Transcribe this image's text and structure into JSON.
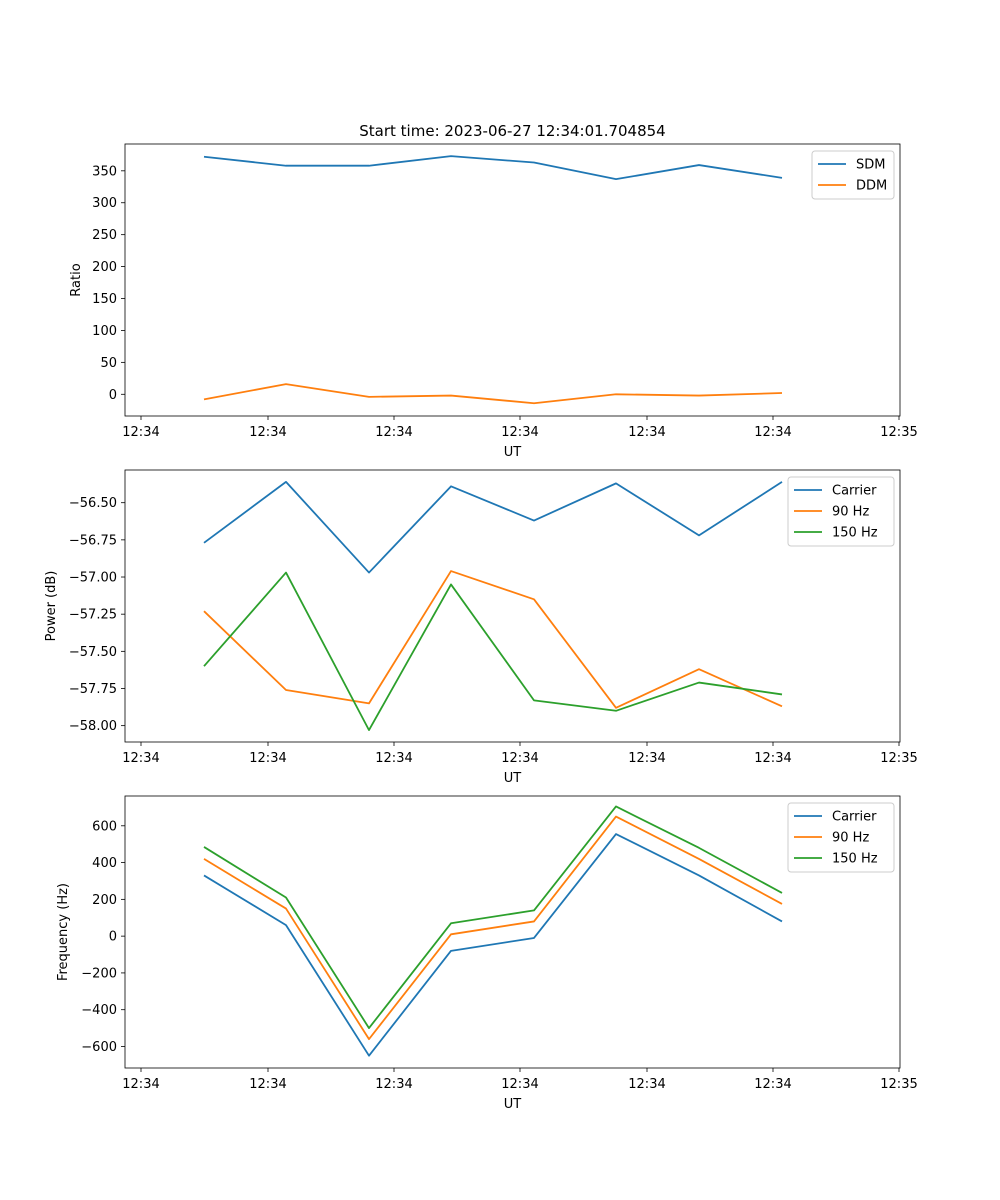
{
  "figure_title": "Start time: 2023-06-27 12:34:01.704854",
  "colors": {
    "blue": "#1f77b4",
    "orange": "#ff7f0e",
    "green": "#2ca02c"
  },
  "chart_data": [
    {
      "type": "line",
      "title": "Start time: 2023-06-27 12:34:01.704854",
      "xlabel": "UT",
      "ylabel": "Ratio",
      "x_ticks": [
        "12:34",
        "12:34",
        "12:34",
        "12:34",
        "12:34",
        "12:34",
        "12:35"
      ],
      "y_ticks": [
        0,
        50,
        100,
        150,
        200,
        250,
        300,
        350
      ],
      "ylim": [
        -34,
        392
      ],
      "legend": "top-right",
      "series": [
        {
          "name": "SDM",
          "color": "#1f77b4",
          "values": [
            372,
            358,
            358,
            373,
            363,
            337,
            359,
            339
          ]
        },
        {
          "name": "DDM",
          "color": "#ff7f0e",
          "values": [
            -8,
            16,
            -4,
            -2,
            -14,
            0,
            -2,
            2
          ]
        }
      ]
    },
    {
      "type": "line",
      "xlabel": "UT",
      "ylabel": "Power (dB)",
      "x_ticks": [
        "12:34",
        "12:34",
        "12:34",
        "12:34",
        "12:34",
        "12:34",
        "12:35"
      ],
      "y_ticks": [
        -58.0,
        -57.75,
        -57.5,
        -57.25,
        -57.0,
        -56.75,
        -56.5
      ],
      "y_tick_labels": [
        "−58.00",
        "−57.75",
        "−57.50",
        "−57.25",
        "−57.00",
        "−56.75",
        "−56.50"
      ],
      "ylim": [
        -58.11,
        -56.28
      ],
      "legend": "top-right",
      "series": [
        {
          "name": "Carrier",
          "color": "#1f77b4",
          "values": [
            -56.77,
            -56.36,
            -56.97,
            -56.39,
            -56.62,
            -56.37,
            -56.72,
            -56.36
          ]
        },
        {
          "name": "90 Hz",
          "color": "#ff7f0e",
          "values": [
            -57.23,
            -57.76,
            -57.85,
            -56.96,
            -57.15,
            -57.88,
            -57.62,
            -57.87
          ]
        },
        {
          "name": "150 Hz",
          "color": "#2ca02c",
          "values": [
            -57.6,
            -56.97,
            -58.03,
            -57.05,
            -57.83,
            -57.9,
            -57.71,
            -57.79
          ]
        }
      ]
    },
    {
      "type": "line",
      "xlabel": "UT",
      "ylabel": "Frequency (Hz)",
      "x_ticks": [
        "12:34",
        "12:34",
        "12:34",
        "12:34",
        "12:34",
        "12:34",
        "12:35"
      ],
      "y_ticks": [
        -600,
        -400,
        -200,
        0,
        200,
        400,
        600
      ],
      "y_tick_labels": [
        "−600",
        "−400",
        "−200",
        "0",
        "200",
        "400",
        "600"
      ],
      "ylim": [
        -717,
        762
      ],
      "legend": "top-right",
      "series": [
        {
          "name": "Carrier",
          "color": "#1f77b4",
          "values": [
            330,
            60,
            -650,
            -80,
            -10,
            555,
            330,
            80
          ]
        },
        {
          "name": "90 Hz",
          "color": "#ff7f0e",
          "values": [
            420,
            150,
            -560,
            10,
            80,
            650,
            420,
            175
          ]
        },
        {
          "name": "150 Hz",
          "color": "#2ca02c",
          "values": [
            485,
            210,
            -500,
            70,
            140,
            705,
            480,
            235
          ]
        }
      ]
    }
  ]
}
